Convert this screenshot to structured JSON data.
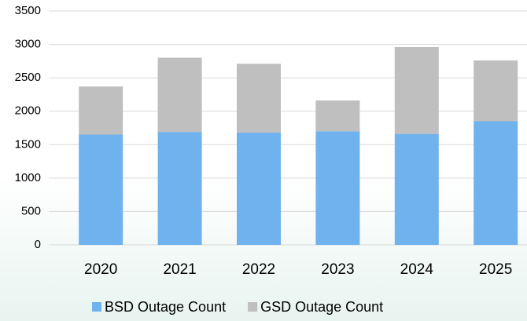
{
  "chart_data": {
    "type": "stacked_bar",
    "categories": [
      "2020",
      "2021",
      "2022",
      "2023",
      "2024",
      "2025"
    ],
    "series": [
      {
        "name": "BSD Outage Count",
        "color": "#6fb2ee",
        "values": [
          1650,
          1690,
          1680,
          1700,
          1660,
          1850
        ]
      },
      {
        "name": "GSD Outage Count",
        "color": "#bfbfbf",
        "values": [
          720,
          1110,
          1030,
          460,
          1300,
          910
        ]
      }
    ],
    "ylim": [
      0,
      3500
    ],
    "yticks": [
      0,
      500,
      1000,
      1500,
      2000,
      2500,
      3000,
      3500
    ],
    "grid": true,
    "legend": "bottom"
  }
}
